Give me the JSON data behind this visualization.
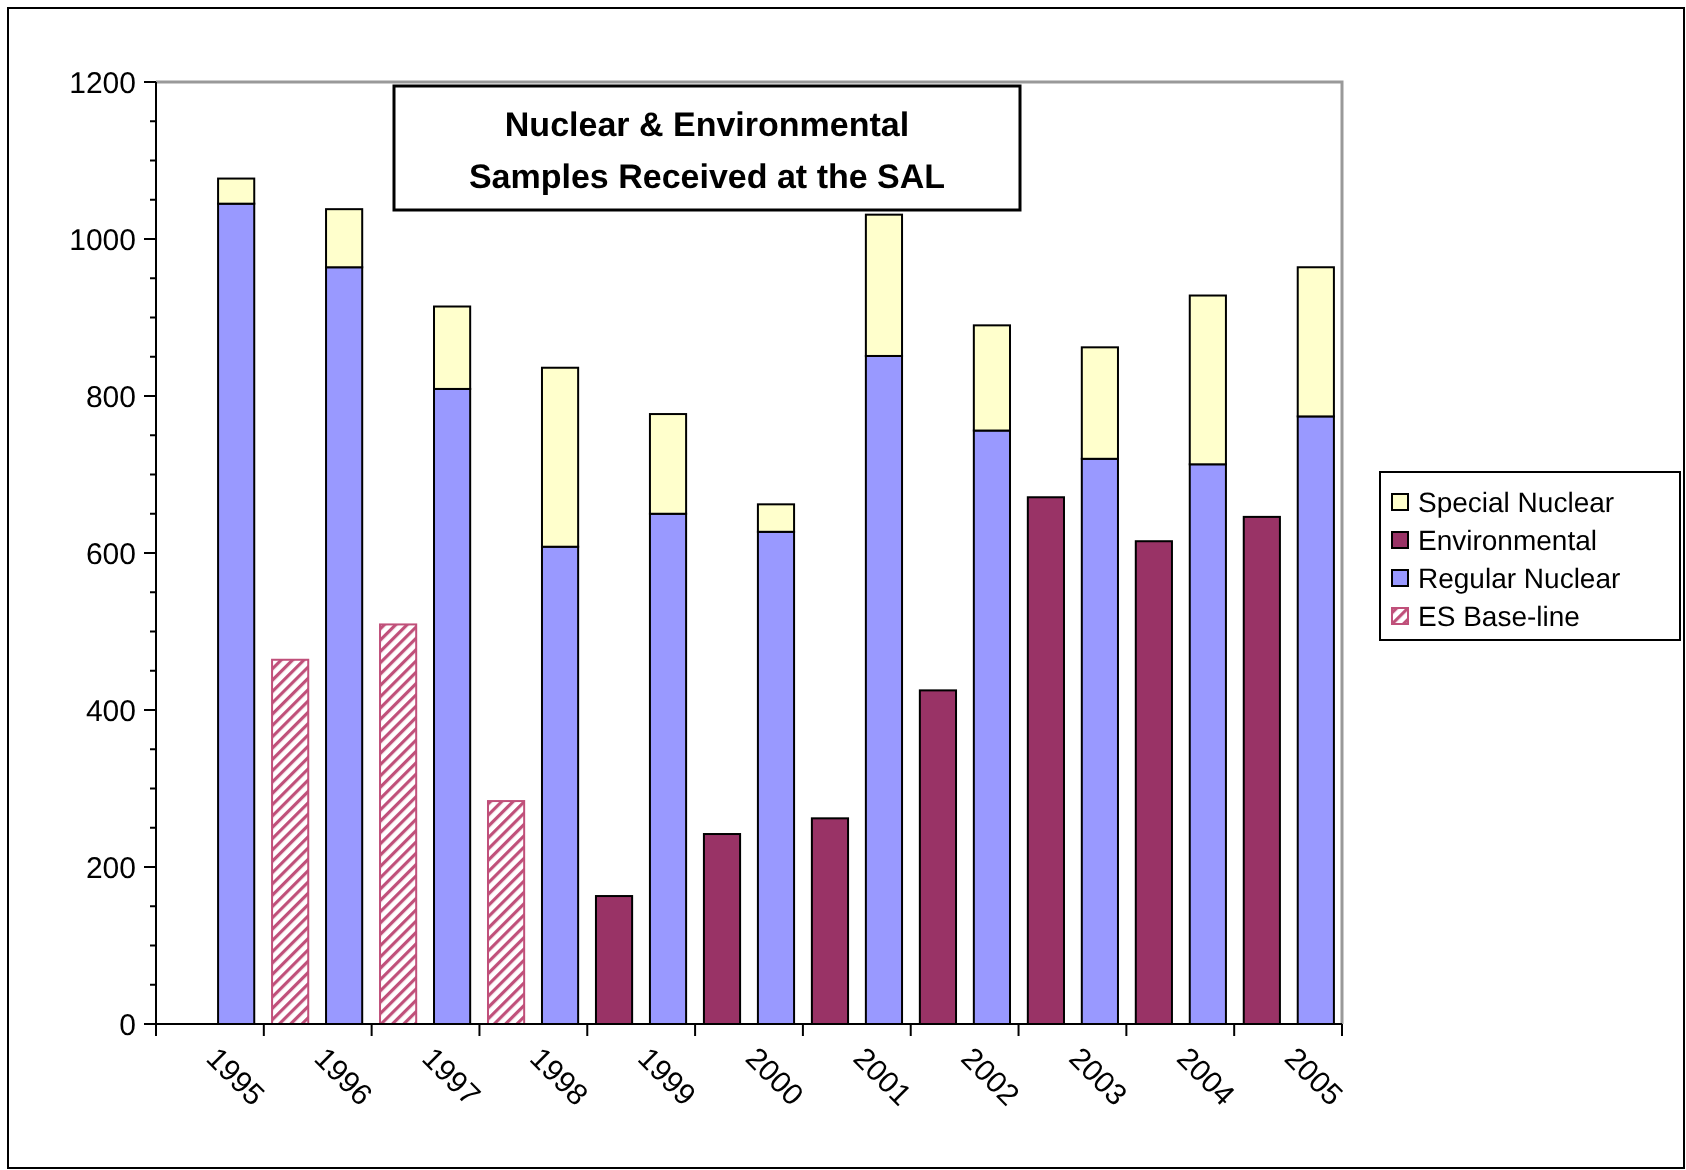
{
  "chart_data": {
    "type": "bar",
    "title": "Nuclear & Environmental Samples Received at the SAL",
    "stacked": true,
    "legend": "right",
    "grid": false,
    "categories": [
      null,
      "1995",
      null,
      "1996",
      null,
      "1997",
      null,
      "1998",
      null,
      "1999",
      null,
      "2000",
      null,
      "2001",
      null,
      "2002",
      null,
      "2003",
      null,
      "2004",
      null,
      "2005"
    ],
    "series": [
      {
        "name": "ES Base-line",
        "color": "#c0507a",
        "values": [
          null,
          null,
          464,
          null,
          509,
          null,
          284,
          null,
          null,
          null,
          null,
          null,
          null,
          null,
          null,
          null,
          null,
          null,
          null,
          null,
          null,
          null
        ]
      },
      {
        "name": "Regular Nuclear",
        "color": "#9999ff",
        "values": [
          null,
          1045,
          null,
          964,
          null,
          809,
          null,
          608,
          null,
          650,
          null,
          627,
          null,
          851,
          null,
          756,
          null,
          720,
          null,
          713,
          null,
          774
        ]
      },
      {
        "name": "Environmental",
        "color": "#993366",
        "values": [
          null,
          null,
          null,
          null,
          null,
          null,
          null,
          null,
          163,
          null,
          242,
          null,
          262,
          null,
          425,
          null,
          671,
          null,
          615,
          null,
          646,
          null
        ]
      },
      {
        "name": "Special Nuclear",
        "color": "#ffffcc",
        "values": [
          null,
          32,
          null,
          74,
          null,
          105,
          null,
          228,
          null,
          127,
          null,
          35,
          null,
          180,
          null,
          134,
          null,
          142,
          null,
          215,
          null,
          190
        ]
      }
    ],
    "ylim": [
      0,
      1200
    ],
    "yticks": [
      0,
      {
        "value": 50,
        "label": null
      },
      {
        "value": 100,
        "label": null
      },
      {
        "value": 150,
        "label": null
      },
      200,
      {
        "value": 250,
        "label": null
      },
      {
        "value": 300,
        "label": null
      },
      {
        "value": 350,
        "label": null
      },
      400,
      {
        "value": 450,
        "label": null
      },
      {
        "value": 500,
        "label": null
      },
      {
        "value": 550,
        "label": null
      },
      600,
      {
        "value": 650,
        "label": null
      },
      {
        "value": 700,
        "label": null
      },
      {
        "value": 750,
        "label": null
      },
      800,
      {
        "value": 850,
        "label": null
      },
      {
        "value": 900,
        "label": null
      },
      {
        "value": 950,
        "label": null
      },
      1000,
      {
        "value": 1050,
        "label": null
      },
      {
        "value": 1100,
        "label": null
      },
      {
        "value": 1150,
        "label": null
      },
      1200
    ]
  }
}
